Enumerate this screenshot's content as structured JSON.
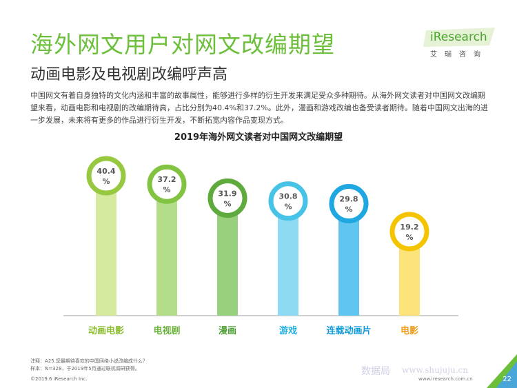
{
  "header": {
    "title": "海外网文用户对网文改编期望",
    "subtitle": "动画电影及电视剧改编呼声高",
    "description": "中国网文有着自身独特的文化内涵和丰富的故事属性，能够进行多样的衍生开发来满足受众多种期待。从海外网文读者对中国网文改编期望来看，动画电影和电视剧的改编期待高，占比分别为40.4%和37.2%。此外，漫画和游戏改编也备受读者期待。随着中国网文出海的进一步发展，未来将有更多的作品进行衍生开发，不断拓宽内容作品变现方式。"
  },
  "logo": {
    "brand": "iResearch",
    "sub": "艾瑞咨询"
  },
  "chart_data": {
    "type": "bar",
    "title": "2019年海外网文读者对中国网文改编期望",
    "categories": [
      "动画电影",
      "电视剧",
      "漫画",
      "游戏",
      "连载动画片",
      "电影"
    ],
    "values": [
      40.4,
      37.2,
      31.9,
      30.8,
      29.8,
      19.2
    ],
    "value_labels": [
      "40.4\n%",
      "37.2\n%",
      "31.9\n%",
      "30.8\n%",
      "29.8\n%",
      "19.2\n%"
    ],
    "unit": "%",
    "colors": [
      "#97c940",
      "#82c342",
      "#5faa3c",
      "#46c3e6",
      "#1ea7e1",
      "#f5c400"
    ],
    "bar_colors": [
      "#d5ea9d",
      "#b4dd8a",
      "#99d07e",
      "#8fdaf3",
      "#60c6ef",
      "#fde47a"
    ],
    "label_colors": [
      "#8bbd2f",
      "#6ab239",
      "#4e9f32",
      "#1fb0e0",
      "#0f9bd8",
      "#ef9a15"
    ],
    "ylim": [
      0,
      45
    ]
  },
  "footer": {
    "note": "注释：A25.您最期待喜欢的中国网络小说改编成什么？",
    "sample": "样本：N=328，于2019年5月通过联机调研获得。",
    "copyright": "©2019.6 iResearch Inc.",
    "site": "www.iresearch.com.cn",
    "page": "22"
  },
  "watermark": {
    "cn": "数据局",
    "url": "www.shujuju.cn"
  }
}
